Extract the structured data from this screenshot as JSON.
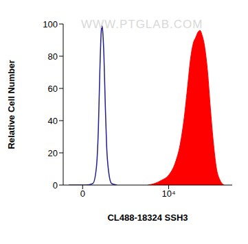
{
  "chart_data": {
    "type": "area",
    "x_label": "CL488-18324 SSH3",
    "y_label": "Relative Cell Number",
    "annotations": [
      "WWW.PTGLAB.COM"
    ],
    "xlim": [
      -7,
      9000000
    ],
    "xticks": [
      0,
      {
        "value": 10000,
        "label": "10⁴"
      }
    ],
    "ylim": [
      0,
      100
    ],
    "yticks": [
      0,
      20,
      40,
      60,
      80,
      100
    ],
    "grid": false,
    "series": [
      {
        "type": "line",
        "color": "#1f1f8f",
        "x": [
          -3.35,
          0.45,
          2.0,
          3.3,
          4.4,
          5.3,
          6.3,
          6.8,
          7.4,
          8.8,
          10.3,
          12,
          15.3,
          21,
          38
        ],
        "values": [
          0,
          0,
          1,
          10,
          35,
          70,
          95,
          99,
          97,
          80,
          50,
          25,
          8,
          1,
          0
        ]
      },
      {
        "type": "area",
        "color": "#ff0000",
        "x": [
          1080,
          2250,
          4700,
          9800,
          20500,
          34000,
          53000,
          77000,
          103000,
          139000,
          186000,
          231000,
          289000,
          360000,
          484000,
          650000,
          870000,
          1170000,
          1690000,
          2450000,
          3800000
        ],
        "values": [
          0,
          1,
          3,
          6,
          14,
          25,
          42,
          62,
          78,
          88,
          92,
          95,
          96,
          93,
          85,
          70,
          48,
          28,
          10,
          3,
          0
        ]
      }
    ]
  }
}
